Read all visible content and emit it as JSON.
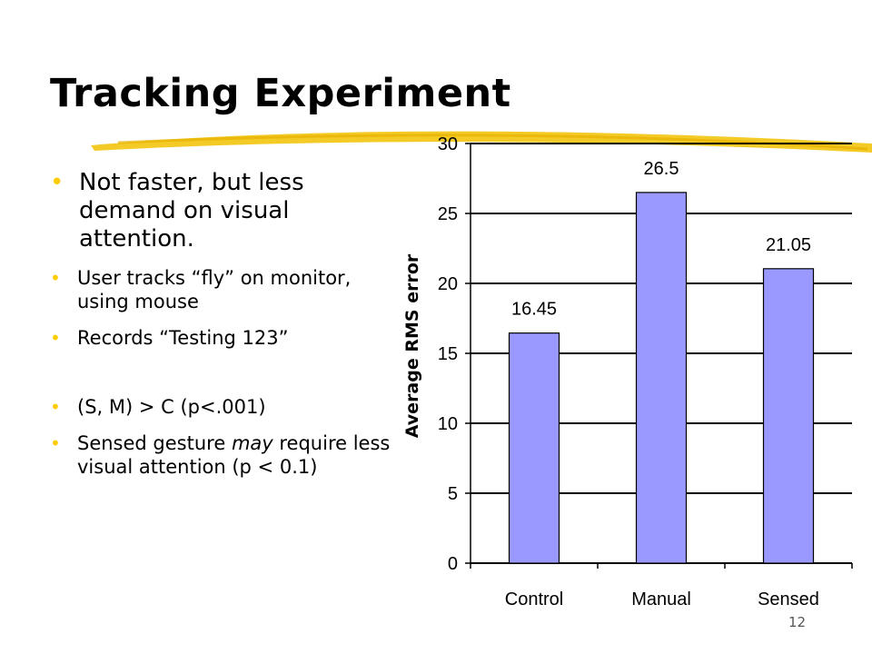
{
  "slide": {
    "title": "Tracking Experiment",
    "number": "12"
  },
  "bullets": {
    "b1": "Not faster, but less demand on visual attention.",
    "b2": "User tracks “fly” on monitor, using mouse",
    "b3": "Records “Testing 123”",
    "b4": "(S, M) > C  (p<.001)",
    "b5_pre": "Sensed gesture ",
    "b5_em": "may",
    "b5_post": " require less visual attention (p < 0.1)"
  },
  "colors": {
    "bar_fill": "#9999ff",
    "bar_stroke": "#000000",
    "bullet": "#ffcc00",
    "swoosh": "#f2c200"
  },
  "chart_data": {
    "type": "bar",
    "categories": [
      "Control",
      "Manual",
      "Sensed"
    ],
    "values": [
      16.45,
      26.5,
      21.05
    ],
    "data_labels": [
      "16.45",
      "26.5",
      "21.05"
    ],
    "title": "",
    "xlabel": "",
    "ylabel": "Average RMS error",
    "ylim": [
      0,
      30
    ],
    "yticks": [
      0,
      5,
      10,
      15,
      20,
      25,
      30
    ],
    "grid": true,
    "legend": "none"
  }
}
